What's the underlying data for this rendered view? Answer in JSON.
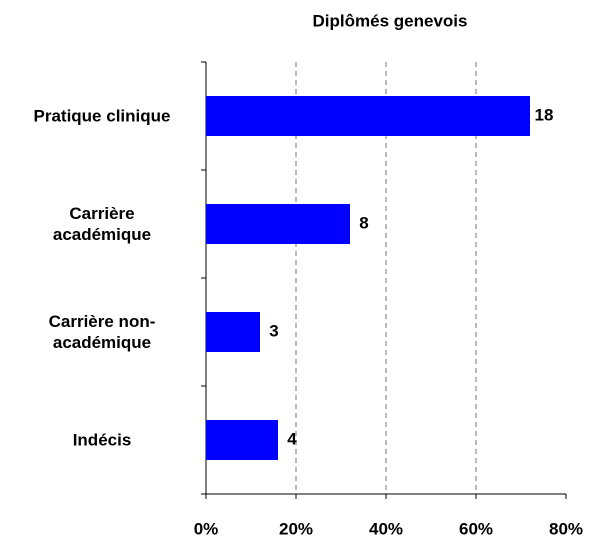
{
  "chart_data": {
    "type": "hbar",
    "title": "Diplômés genevois",
    "categories": [
      "Pratique clinique",
      "Carrière\nacadémique",
      "Carrière non-\nacadémique",
      "Indécis"
    ],
    "values": [
      72,
      32,
      12,
      16
    ],
    "counts": [
      18,
      8,
      3,
      4
    ],
    "color": "#0000ff",
    "xlim": [
      0,
      80
    ],
    "xticks": [
      {
        "value": 0,
        "label": "0%"
      },
      {
        "value": 20,
        "label": "20%"
      },
      {
        "value": 40,
        "label": "40%"
      },
      {
        "value": 60,
        "label": "60%"
      },
      {
        "value": 80,
        "label": "80%"
      }
    ],
    "grid": true
  }
}
